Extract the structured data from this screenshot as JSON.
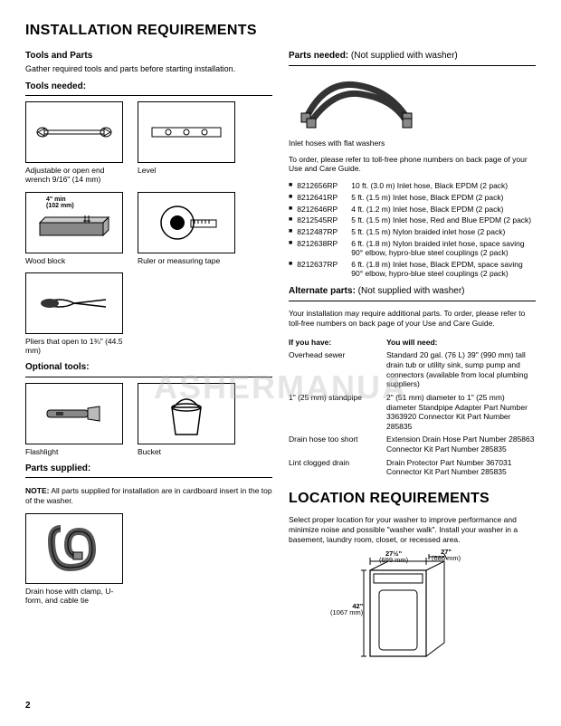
{
  "section1_title": "INSTALLATION REQUIREMENTS",
  "tools_parts_h": "Tools and Parts",
  "tools_parts_sub": "Gather required tools and parts before starting installation.",
  "tools_needed_h": "Tools needed:",
  "tools": {
    "wrench": "Adjustable or open end wrench 9/16\" (14 mm)",
    "level": "Level",
    "wood": "Wood block",
    "wood_label1": "4\" min",
    "wood_label2": "(102 mm)",
    "ruler": "Ruler or measuring tape",
    "pliers": "Pliers that open to 1¾\" (44.5 mm)"
  },
  "optional_h": "Optional tools:",
  "optional": {
    "flashlight": "Flashlight",
    "bucket": "Bucket"
  },
  "supplied_h": "Parts supplied:",
  "supplied_note_label": "NOTE:",
  "supplied_note": " All parts supplied for installation are in cardboard insert in the top of the washer.",
  "drain_hose_cap": "Drain hose with clamp, U-form, and cable tie",
  "parts_needed_h": "Parts needed:",
  "parts_needed_sub": " (Not supplied with washer)",
  "inlet_cap": "Inlet hoses with flat washers",
  "order_text": "To order, please refer to toll-free phone numbers on back page of your Use and Care Guide.",
  "parts": [
    {
      "pn": "8212656RP",
      "d": "10 ft. (3.0 m) Inlet hose, Black EPDM (2 pack)"
    },
    {
      "pn": "8212641RP",
      "d": "5 ft. (1.5 m) Inlet hose, Black EPDM (2 pack)"
    },
    {
      "pn": "8212646RP",
      "d": "4 ft. (1.2 m) Inlet hose, Black EPDM (2 pack)"
    },
    {
      "pn": "8212545RP",
      "d": "5 ft. (1.5 m) Inlet hose, Red and Blue EPDM (2 pack)"
    },
    {
      "pn": "8212487RP",
      "d": "5 ft. (1.5 m) Nylon braided inlet hose (2 pack)"
    },
    {
      "pn": "8212638RP",
      "d": "6 ft. (1.8 m) Nylon braided inlet hose, space saving 90° elbow, hypro-blue steel couplings (2 pack)"
    },
    {
      "pn": "8212637RP",
      "d": "6 ft. (1.8 m) Inlet hose, Black EPDM, space saving 90° elbow, hypro-blue steel couplings (2 pack)"
    }
  ],
  "alt_h": "Alternate parts:",
  "alt_sub": " (Not supplied with washer)",
  "alt_text": "Your installation may require additional parts. To order, please refer to toll-free numbers on back page of your Use and Care Guide.",
  "alt_th1": "If you have:",
  "alt_th2": "You will need:",
  "alt_rows": [
    {
      "a": "Overhead sewer",
      "b": "Standard 20 gal. (76 L) 39\" (990 mm) tall drain tub or utility sink, sump pump and connectors (available from local plumbing suppliers)"
    },
    {
      "a": "1\" (25 mm) standpipe",
      "b": "2\" (51 mm) diameter to 1\" (25 mm) diameter Standpipe Adapter Part Number  3363920 Connector Kit Part Number 285835"
    },
    {
      "a": "Drain hose too short",
      "b": "Extension Drain Hose Part Number 285863 Connector Kit Part Number 285835"
    },
    {
      "a": "Lint clogged drain",
      "b": "Drain Protector Part Number 367031 Connector Kit Part Number 285835"
    }
  ],
  "section2_title": "LOCATION REQUIREMENTS",
  "loc_text": "Select proper location for your washer to improve performance and minimize noise and possible \"washer walk\". Install your washer in a basement, laundry room, closet, or recessed area.",
  "dims": {
    "w1": "27½\"",
    "w1m": "(699 mm)",
    "w2": "27\"",
    "w2m": "(686 mm)",
    "h": "42\"",
    "hm": "(1067 mm)"
  },
  "watermark": "ASHERMANUA",
  "page": "2"
}
